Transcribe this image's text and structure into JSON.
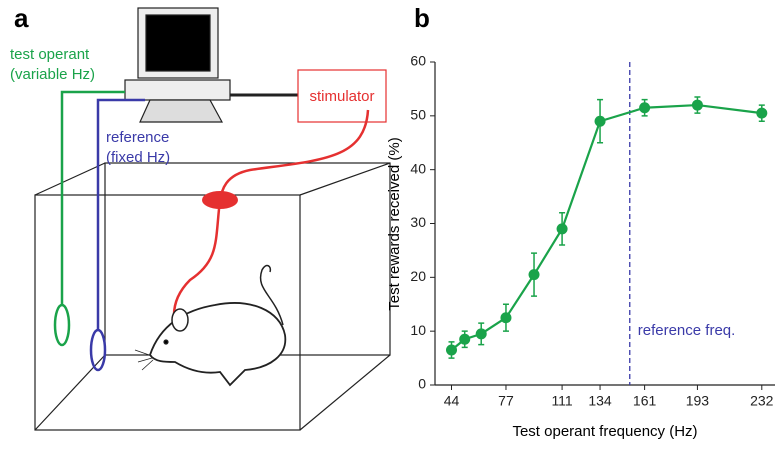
{
  "panel_a": {
    "label": "a",
    "test_operant": "test operant",
    "test_operant_sub": "(variable Hz)",
    "reference": "reference",
    "reference_sub": "(fixed Hz)",
    "stimulator": "stimulator"
  },
  "chart_data": {
    "type": "line",
    "label": "b",
    "x_label": "Test operant frequency (Hz)",
    "y_label": "Test rewards received (%)",
    "x": [
      44,
      52,
      62,
      77,
      94,
      111,
      134,
      161,
      193,
      232
    ],
    "series": [
      {
        "color": "#1aa34a",
        "values": [
          6.5,
          8.5,
          9.5,
          12.5,
          20.5,
          29,
          49,
          51.5,
          52,
          50.5
        ],
        "errors": [
          1.5,
          1.5,
          2,
          2.5,
          4,
          3,
          4,
          1.5,
          1.5,
          1.5
        ]
      }
    ],
    "xlim": [
      34,
      240
    ],
    "xticks": [
      44,
      77,
      111,
      134,
      161,
      193,
      232
    ],
    "ylim": [
      0,
      60
    ],
    "yticks": [
      0,
      10,
      20,
      30,
      40,
      50,
      60
    ],
    "reference": {
      "x": 152,
      "label": "reference freq.",
      "color": "#3a3aa8"
    }
  }
}
